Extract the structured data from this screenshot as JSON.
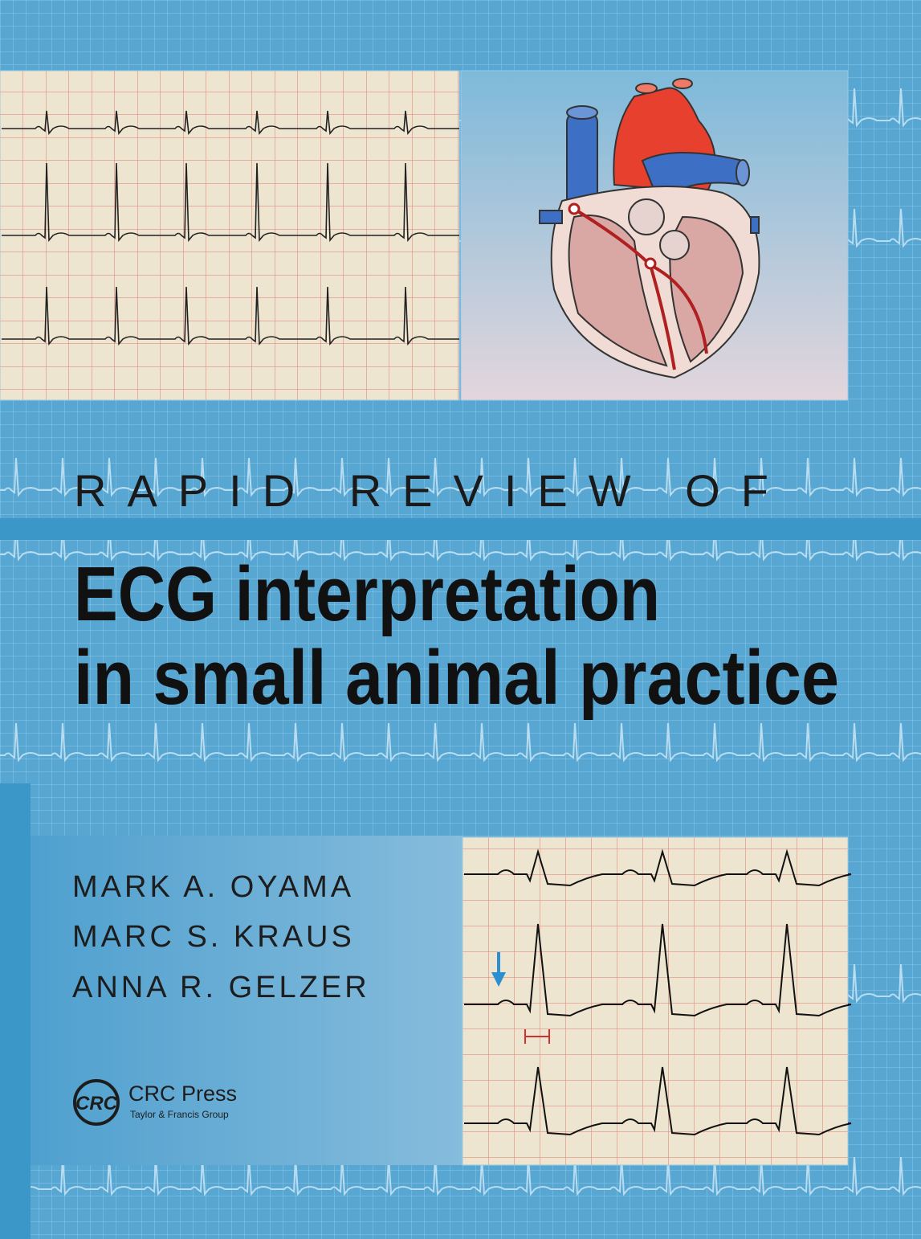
{
  "cover": {
    "series": "RAPID REVIEW OF",
    "title_lines": [
      "ECG interpretation",
      "in small animal practice"
    ],
    "authors": [
      "MARK A. OYAMA",
      "MARC S. KRAUS",
      "ANNA R. GELZER"
    ],
    "publisher": {
      "logo": "CRC",
      "name": "CRC Press",
      "group": "Taylor & Francis Group"
    }
  }
}
